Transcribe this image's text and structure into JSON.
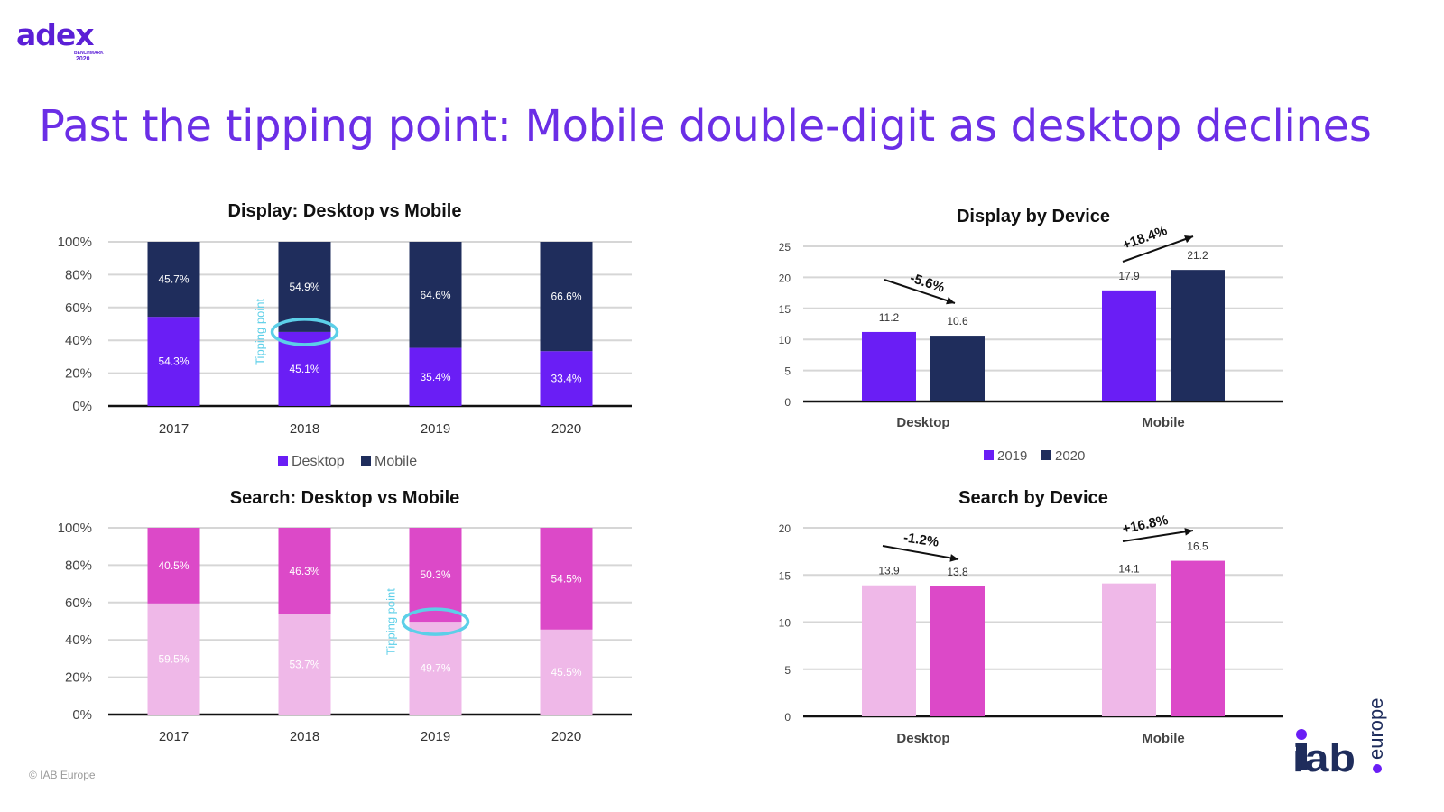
{
  "brand": {
    "logo_word": "adex",
    "logo_sub": "BENCHMARK",
    "logo_year": "2020",
    "iab_word": "iab",
    "iab_suffix": "europe",
    "copyright": "© IAB Europe"
  },
  "page": {
    "title": "Past the tipping point: Mobile double-digit as desktop declines"
  },
  "colors": {
    "title": "#6b2ee6",
    "desktop_display": "#6a1ef5",
    "mobile_display": "#1f2d5c",
    "desktop_search": "#efb8e8",
    "mobile_search": "#dc49c8",
    "tipping_marker": "#5ccfe8"
  },
  "chart_data": [
    {
      "id": "display-share",
      "type": "bar",
      "stacked": true,
      "title": "Display: Desktop vs Mobile",
      "categories": [
        "2017",
        "2018",
        "2019",
        "2020"
      ],
      "series": [
        {
          "name": "Desktop",
          "values": [
            54.3,
            45.1,
            35.4,
            33.4
          ],
          "labels": [
            "54.3%",
            "45.1%",
            "35.4%",
            "33.4%"
          ],
          "color": "#6a1ef5"
        },
        {
          "name": "Mobile",
          "values": [
            45.7,
            54.9,
            64.6,
            66.6
          ],
          "labels": [
            "45.7%",
            "54.9%",
            "64.6%",
            "66.6%"
          ],
          "color": "#1f2d5c"
        }
      ],
      "yticks": [
        "0%",
        "20%",
        "40%",
        "60%",
        "80%",
        "100%"
      ],
      "ylim": [
        0,
        100
      ],
      "legend": [
        "Desktop",
        "Mobile"
      ],
      "annotation": {
        "text": "Tipping point",
        "category": "2018"
      }
    },
    {
      "id": "display-device",
      "type": "bar",
      "title": "Display by Device",
      "categories": [
        "Desktop",
        "Mobile"
      ],
      "series": [
        {
          "name": "2019",
          "values": [
            11.2,
            17.9
          ],
          "color": "#6a1ef5"
        },
        {
          "name": "2020",
          "values": [
            10.6,
            21.2
          ],
          "color": "#1f2d5c"
        }
      ],
      "yticks": [
        "0",
        "5",
        "10",
        "15",
        "20",
        "25"
      ],
      "ylim": [
        0,
        25
      ],
      "legend": [
        "2019",
        "2020"
      ],
      "growth": [
        "-5.6%",
        "+18.4%"
      ]
    },
    {
      "id": "search-share",
      "type": "bar",
      "stacked": true,
      "title": "Search: Desktop vs Mobile",
      "categories": [
        "2017",
        "2018",
        "2019",
        "2020"
      ],
      "series": [
        {
          "name": "Desktop",
          "values": [
            59.5,
            53.7,
            49.7,
            45.5
          ],
          "labels": [
            "59.5%",
            "53.7%",
            "49.7%",
            "45.5%"
          ],
          "color": "#efb8e8"
        },
        {
          "name": "Mobile",
          "values": [
            40.5,
            46.3,
            50.3,
            54.5
          ],
          "labels": [
            "40.5%",
            "46.3%",
            "50.3%",
            "54.5%"
          ],
          "color": "#dc49c8"
        }
      ],
      "yticks": [
        "0%",
        "20%",
        "40%",
        "60%",
        "80%",
        "100%"
      ],
      "ylim": [
        0,
        100
      ],
      "annotation": {
        "text": "Tipping point",
        "category": "2019"
      }
    },
    {
      "id": "search-device",
      "type": "bar",
      "title": "Search by Device",
      "categories": [
        "Desktop",
        "Mobile"
      ],
      "series": [
        {
          "name": "2019",
          "values": [
            13.9,
            14.1
          ],
          "color": "#efb8e8"
        },
        {
          "name": "2020",
          "values": [
            13.8,
            16.5
          ],
          "color": "#dc49c8"
        }
      ],
      "yticks": [
        "0",
        "5",
        "10",
        "15",
        "20"
      ],
      "ylim": [
        0,
        20
      ],
      "growth": [
        "-1.2%",
        "+16.8%"
      ]
    }
  ]
}
